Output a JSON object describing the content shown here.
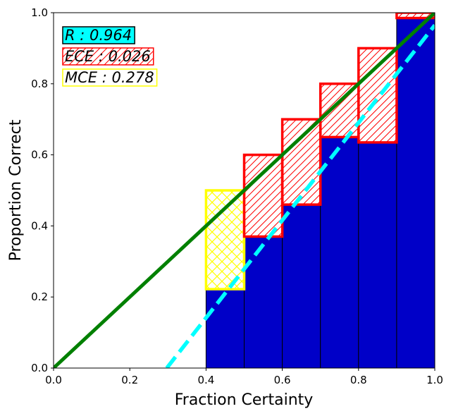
{
  "chart_data": {
    "type": "bar",
    "xlabel": "Fraction Certainty",
    "ylabel": "Proportion Correct",
    "xlim": [
      0,
      1
    ],
    "ylim": [
      0,
      1
    ],
    "x_ticks": [
      "0.0",
      "0.2",
      "0.4",
      "0.6",
      "0.8",
      "1.0"
    ],
    "y_ticks": [
      "0.0",
      "0.2",
      "0.4",
      "0.6",
      "0.8",
      "1.0"
    ],
    "grid": false,
    "bins": [
      {
        "x0": 0.4,
        "x1": 0.5,
        "accuracy": 0.222,
        "expected": 0.5,
        "gap_type": "max"
      },
      {
        "x0": 0.5,
        "x1": 0.6,
        "accuracy": 0.37,
        "expected": 0.6,
        "gap_type": "gap"
      },
      {
        "x0": 0.6,
        "x1": 0.7,
        "accuracy": 0.46,
        "expected": 0.7,
        "gap_type": "gap"
      },
      {
        "x0": 0.7,
        "x1": 0.8,
        "accuracy": 0.65,
        "expected": 0.8,
        "gap_type": "gap"
      },
      {
        "x0": 0.8,
        "x1": 0.9,
        "accuracy": 0.635,
        "expected": 0.9,
        "gap_type": "gap"
      },
      {
        "x0": 0.9,
        "x1": 1.0,
        "accuracy": 0.985,
        "expected": 1.0,
        "gap_type": "gap"
      }
    ],
    "identity_line": {
      "x": [
        0,
        1
      ],
      "y": [
        0,
        1
      ],
      "color": "#008000",
      "style": "solid"
    },
    "fit_line": {
      "x": [
        0.297,
        1.0
      ],
      "y": [
        0.0,
        0.965
      ],
      "color": "#00ffff",
      "style": "dashed"
    },
    "annotations": [
      {
        "text": "R : 0.964",
        "box_fill": "#00ffff",
        "box_edge": "#000000",
        "hatch": "none"
      },
      {
        "text": "ECE : 0.026",
        "box_fill": "#ffffff",
        "box_edge": "#ff0000",
        "hatch": "red-diagonal"
      },
      {
        "text": "MCE : 0.278",
        "box_fill": "#ffffff",
        "box_edge": "#ffff00",
        "hatch": "none"
      }
    ],
    "colors": {
      "bar_fill": "#0000c8",
      "gap_edge": "#ff0000",
      "max_gap_edge": "#ffff00"
    }
  }
}
